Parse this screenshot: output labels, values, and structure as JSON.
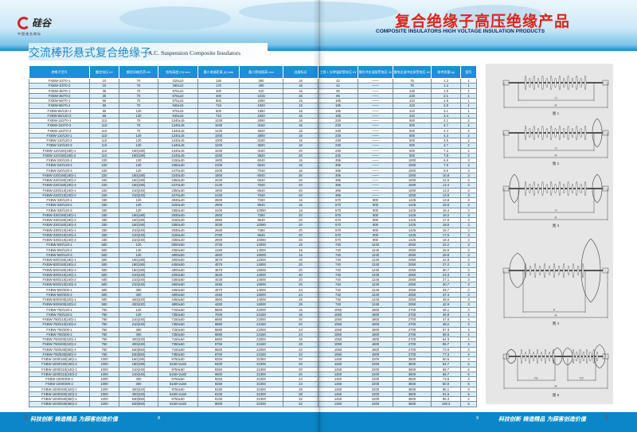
{
  "header": {
    "logo_text": "硅谷",
    "logo_sub": "中国驰名商标",
    "title_cn": "复合绝缘子高压绝缘产品",
    "title_en": "COMPOSITE INSULATORS HIGH VOLTAGE INSULATION PRODUCTS"
  },
  "section": {
    "title_cn": "交流棒形悬式复合绝缘子",
    "title_en": "A.C. Suspension Composite Insulators"
  },
  "table": {
    "columns": [
      "绝缘子型号",
      "额定电压 kV",
      "额定机械负荷 kN",
      "结构高度 (H) mm",
      "最小电弧距离 (h) mm",
      "最小爬电距离 mm",
      "连接标记",
      "工频 1 分钟湿耐受电压 kV",
      "操作冲击湿耐受电压 kV",
      "雷电全波冲击耐受电压 kV",
      "参考质量 kg",
      "图号"
    ],
    "rows": [
      [
        "FXBW-10/70-1",
        "10",
        "70",
        "310±10",
        "130",
        "300",
        "16",
        "42",
        "——",
        "75",
        "1.3",
        "1"
      ],
      [
        "FXBW-10/70-2",
        "10",
        "70",
        "360±10",
        "170",
        "400",
        "16",
        "42",
        "——",
        "75",
        "1.4",
        "1"
      ],
      [
        "FXBW-35/70-1",
        "35",
        "70",
        "670±10",
        "400",
        "810",
        "16",
        "95",
        "——",
        "230",
        "1.9",
        "1"
      ],
      [
        "FXBW-35/70-2",
        "35",
        "70",
        "670±10",
        "400",
        "1015",
        "16",
        "95",
        "——",
        "230",
        "2.1",
        "1"
      ],
      [
        "FXBW-66/70-1",
        "66",
        "70",
        "870±15",
        "600",
        "1650",
        "16",
        "185",
        "——",
        "410",
        "2.8",
        "1"
      ],
      [
        "FXBW-66/70-2",
        "66",
        "70",
        "940±15",
        "710",
        "1920",
        "16",
        "185",
        "——",
        "410",
        "2.9",
        "1"
      ],
      [
        "FXBW-66/120-1",
        "66",
        "120",
        "870±15",
        "600",
        "1650",
        "16",
        "185",
        "——",
        "410",
        "3.1",
        "1"
      ],
      [
        "FXBW-66/120-2",
        "66",
        "120",
        "940±15",
        "710",
        "1920",
        "16",
        "185",
        "——",
        "410",
        "3.4",
        "1"
      ],
      [
        "FXBW-110/70-1",
        "110",
        "70",
        "1240±15",
        "1030",
        "2800",
        "16",
        "230",
        "——",
        "500",
        "4.1",
        "2"
      ],
      [
        "FXBW-110/70-2",
        "110",
        "70",
        "1240±15",
        "1030",
        "3150",
        "16",
        "230",
        "——",
        "500",
        "4.7",
        "2"
      ],
      [
        "FXBW-110/70-3",
        "110",
        "70",
        "1440±15",
        "1230",
        "3620",
        "16",
        "230",
        "——",
        "500",
        "4.4",
        "2"
      ],
      [
        "FXBW-110/120-1",
        "110",
        "120",
        "1240±15",
        "1000",
        "2800",
        "16",
        "230",
        "——",
        "500",
        "4.3",
        "2"
      ],
      [
        "FXBW-110/120-2",
        "110",
        "120",
        "1240±15",
        "1000",
        "3150",
        "16",
        "230",
        "——",
        "500",
        "4.5",
        "2"
      ],
      [
        "FXBW-110/120-3",
        "110",
        "120",
        "1440±15",
        "1200",
        "3620",
        "16",
        "230",
        "——",
        "500",
        "4.7",
        "2"
      ],
      [
        "FXBW-110/160(180)-1",
        "110",
        "160(180)",
        "1240±15",
        "1030",
        "3150",
        "20",
        "230",
        "——",
        "500",
        "7.3",
        "2"
      ],
      [
        "FXBW-110/160(180)-2",
        "110",
        "160(180)",
        "1240±15",
        "1030",
        "3620",
        "20",
        "230",
        "——",
        "500",
        "7.8",
        "2"
      ],
      [
        "FXBW-220/120-1",
        "220",
        "120",
        "2150±30",
        "1900",
        "6040",
        "16",
        "395",
        "——",
        "1000",
        "6.9",
        "3"
      ],
      [
        "FXBW-220/120-2",
        "220",
        "120",
        "2350±30",
        "2100",
        "6540",
        "16",
        "395",
        "——",
        "1000",
        "7.9",
        "3"
      ],
      [
        "FXBW-220/120-3",
        "220",
        "120",
        "2470±30",
        "2200",
        "7040",
        "16",
        "395",
        "——",
        "1000",
        "8.6",
        "3"
      ],
      [
        "FXBW-220/160(180)-1",
        "220",
        "160(180)",
        "2240±30",
        "1900",
        "6040",
        "20",
        "395",
        "——",
        "1000",
        "10.8",
        "3"
      ],
      [
        "FXBW-220/160(180)-2",
        "220",
        "160(180)",
        "2350±30",
        "2030",
        "6540",
        "20",
        "395",
        "——",
        "1000",
        "12.5",
        "3"
      ],
      [
        "FXBW-220/160(180)-3",
        "220",
        "160(180)",
        "2470±30",
        "2140",
        "7040",
        "20",
        "395",
        "——",
        "1000",
        "13.4",
        "3"
      ],
      [
        "FXBW-220/210(240)-1",
        "220",
        "210(240)",
        "2350±30",
        "1900",
        "6540",
        "20",
        "395",
        "——",
        "1000",
        "13.0",
        "3"
      ],
      [
        "FXBW-220/210(240)-2",
        "220",
        "210(240)",
        "2470±30",
        "2100",
        "7040",
        "20",
        "395",
        "——",
        "1000",
        "13.9",
        "3"
      ],
      [
        "FXBW-330/120-1",
        "330",
        "120",
        "2930±40",
        "2600",
        "7260",
        "16",
        "570",
        "900",
        "1425",
        "13.8",
        "3"
      ],
      [
        "FXBW-330/120-2",
        "330",
        "120",
        "3150±40",
        "2900",
        "9540",
        "16",
        "570",
        "900",
        "1425",
        "16.6",
        "3"
      ],
      [
        "FXBW-330/120-3",
        "330",
        "120",
        "3350±40",
        "3100",
        "10080",
        "16",
        "570",
        "900",
        "1425",
        "16.4",
        "3"
      ],
      [
        "FXBW-330/160(180)-1",
        "330",
        "160(180)",
        "2930±40",
        "2600",
        "7260",
        "20",
        "570",
        "900",
        "1425",
        "16.2",
        "3"
      ],
      [
        "FXBW-330/160(180)-2",
        "330",
        "160(180)",
        "3150±40",
        "2850",
        "9540",
        "20",
        "570",
        "900",
        "1425",
        "17.0",
        "3"
      ],
      [
        "FXBW-330/160(180)-3",
        "330",
        "160(180)",
        "3350±40",
        "3030",
        "10080",
        "20",
        "570",
        "900",
        "1425",
        "18.8",
        "3"
      ],
      [
        "FXBW-330/210(240)-1",
        "330",
        "210(240)",
        "2930±40",
        "2560",
        "7260",
        "20",
        "570",
        "900",
        "1425",
        "16.7",
        "3"
      ],
      [
        "FXBW-330/210(240)-2",
        "330",
        "210(240)",
        "3150±40",
        "2780",
        "9540",
        "20",
        "570",
        "900",
        "1425",
        "17.6",
        "3"
      ],
      [
        "FXBW-330/210(240)-3",
        "330",
        "210(240)",
        "3350±40",
        "2900",
        "10080",
        "20",
        "570",
        "900",
        "1425",
        "18.3",
        "3"
      ],
      [
        "FXBW-500/120-1",
        "500",
        "120",
        "4000±50",
        "3730",
        "12000",
        "16",
        "740",
        "1240",
        "2050",
        "22.2",
        "3"
      ],
      [
        "FXBW-500/120-2",
        "500",
        "120",
        "4450±50",
        "4150",
        "14000",
        "16",
        "740",
        "1240",
        "2050",
        "26.6",
        "3"
      ],
      [
        "FXBW-500/120-3",
        "500",
        "120",
        "4900±50",
        "4600",
        "16000",
        "16",
        "740",
        "1240",
        "2050",
        "29.8",
        "3"
      ],
      [
        "FXBW-500/160(180)-1",
        "500",
        "160(180)",
        "4000±50",
        "3670",
        "12000",
        "20",
        "740",
        "1240",
        "2050",
        "22.8",
        "3"
      ],
      [
        "FXBW-500/160(180)-2",
        "500",
        "160(180)",
        "4450±50",
        "4070",
        "14000",
        "20",
        "740",
        "1240",
        "2050",
        "27.2",
        "3"
      ],
      [
        "FXBW-500/160(180)-3",
        "500",
        "160(180)",
        "4900±50",
        "4570",
        "16000",
        "20",
        "740",
        "1240",
        "2050",
        "30.7",
        "3"
      ],
      [
        "FXBW-500/210(240)-1",
        "500",
        "210(240)",
        "4000±50",
        "3620",
        "12000",
        "20",
        "740",
        "1240",
        "2050",
        "23.3",
        "3"
      ],
      [
        "FXBW-500/210(240)-2",
        "500",
        "210(240)",
        "4450±50",
        "4030",
        "14000",
        "20",
        "740",
        "1240",
        "2050",
        "27.1",
        "3"
      ],
      [
        "FXBW-500/210(240)-3",
        "500",
        "210(240)",
        "4900±50",
        "4480",
        "16000",
        "20",
        "740",
        "1240",
        "2050",
        "30.7",
        "3"
      ],
      [
        "FXBW-500/300-1",
        "500",
        "300",
        "4450±50",
        "4070",
        "14000",
        "24",
        "740",
        "1240",
        "2050",
        "33.7",
        "3"
      ],
      [
        "FXBW-500/300-2",
        "500",
        "300",
        "4900±50",
        "4460",
        "16000",
        "24",
        "740",
        "1240",
        "2050",
        "37.4",
        "3"
      ],
      [
        "FXBW-500/400(420)-1",
        "500",
        "400(420)",
        "4450±50",
        "3900",
        "14000",
        "28",
        "740",
        "1240",
        "2050",
        "39.0",
        "3"
      ],
      [
        "FXBW-500/400(420)-2",
        "500",
        "400(420)",
        "4900±50",
        "4450",
        "16000",
        "28",
        "740",
        "1240",
        "2050",
        "42.9",
        "3"
      ],
      [
        "FXBW-750/120-1",
        "750",
        "120",
        "7150±50",
        "6800",
        "22000",
        "16",
        "1050",
        "1800",
        "2700",
        "46.1",
        "4"
      ],
      [
        "FXBW-750/120-2",
        "750",
        "120",
        "7350±50",
        "7000",
        "24150",
        "16",
        "1050",
        "1800",
        "2700",
        "46.9",
        "4"
      ],
      [
        "FXBW-750/210(240)-1",
        "750",
        "210(240)",
        "7150±50",
        "6680",
        "22000",
        "20",
        "1050",
        "1800",
        "2700",
        "47.0",
        "4"
      ],
      [
        "FXBW-750/210(240)-2",
        "750",
        "210(240)",
        "7350±50",
        "6880",
        "24150",
        "20",
        "1050",
        "1800",
        "2700",
        "48.2",
        "4"
      ],
      [
        "FXBW-750/300-1",
        "750",
        "300",
        "7150±50",
        "6680",
        "22000",
        "24",
        "1050",
        "1800",
        "2700",
        "57.3",
        "4"
      ],
      [
        "FXBW-750/300-2",
        "750",
        "300",
        "7350±50",
        "6880",
        "24150",
        "24",
        "1050",
        "1800",
        "2700",
        "58.5",
        "4"
      ],
      [
        "FXBW-750/400(420)-1",
        "750",
        "400(420)",
        "7150±50",
        "6550",
        "22000",
        "28",
        "1050",
        "1800",
        "2700",
        "64.3",
        "4"
      ],
      [
        "FXBW-750/400(420)-2",
        "750",
        "400(420)",
        "7350±50",
        "6750",
        "24150",
        "28",
        "1050",
        "1800",
        "2700",
        "65.7",
        "4"
      ],
      [
        "FXBW-750/530(550)-1",
        "750",
        "530(550)",
        "7150±50",
        "6500",
        "22000",
        "32",
        "1050",
        "1800",
        "2700",
        "73.6",
        "4"
      ],
      [
        "FXBW-750/530(550)-2",
        "750",
        "530(550)",
        "7350±50",
        "6700",
        "24150",
        "32",
        "1050",
        "1800",
        "2700",
        "77.3",
        "4"
      ],
      [
        "FXBW-1000/160(180)-1",
        "1000",
        "160(180)",
        "9750±50",
        "9300",
        "31000",
        "20",
        "1450",
        "2200",
        "3600",
        "60.5",
        "4"
      ],
      [
        "FXBW-1000/160(180)-2",
        "1000",
        "160(180)",
        "5150×2±50",
        "9400",
        "31000",
        "20",
        "1450",
        "2200",
        "3600",
        "64.7",
        "5"
      ],
      [
        "FXBW-1000/210(240)-1",
        "1000",
        "210(240)",
        "9750±50",
        "9350",
        "31000",
        "20",
        "1450",
        "2200",
        "3600",
        "59.7",
        "4"
      ],
      [
        "FXBW-1000/210(240)-2",
        "1000",
        "210(240)",
        "5150×2±50",
        "9600",
        "31000",
        "20",
        "1450",
        "2200",
        "3600",
        "66.7",
        "5"
      ],
      [
        "FXBW-1000/300-1",
        "1000",
        "300",
        "9750±50",
        "9250",
        "31000",
        "24",
        "1450",
        "2200",
        "3600",
        "73.6",
        "4"
      ],
      [
        "FXBW-1000/300-2",
        "1000",
        "300",
        "5150×2±50",
        "9350",
        "31000",
        "24",
        "1450",
        "2200",
        "3600",
        "80.0",
        "5"
      ],
      [
        "FXBW-1000/400(420)-1",
        "1000",
        "400(420)",
        "9750±50",
        "9150",
        "31000",
        "28",
        "1450",
        "2200",
        "3600",
        "85.1",
        "4"
      ],
      [
        "FXBW-1000/400(420)-2",
        "1000",
        "400(420)",
        "5150×2±50",
        "9100",
        "31000",
        "28",
        "1450",
        "2200",
        "3600",
        "91.6",
        "5"
      ],
      [
        "FXBW-1000/530(550)-1",
        "1000",
        "530(550)",
        "9750±50",
        "9100",
        "31000",
        "32",
        "1450",
        "2200",
        "3600",
        "96.3",
        "4"
      ],
      [
        "FXBW-1000/530(550)-2",
        "1000",
        "530(550)",
        "5150×2±50",
        "9000",
        "31000",
        "32",
        "1450",
        "2200",
        "3600",
        "109.3",
        "5"
      ]
    ]
  },
  "figures": [
    {
      "caption": "图 1",
      "labels": [
        "h",
        "H"
      ],
      "rings": "none"
    },
    {
      "caption": "图 2",
      "labels": [
        "h",
        "H"
      ],
      "rings": "one"
    },
    {
      "caption": "图 3",
      "labels": [
        "h",
        "H"
      ],
      "rings": "both"
    },
    {
      "caption": "图 4",
      "labels": [
        "h",
        "H"
      ],
      "rings": "large"
    },
    {
      "caption": "图 5",
      "labels": [
        "h1",
        "h2",
        "H"
      ],
      "rings": "double"
    }
  ],
  "footer": {
    "slogan_left": "科技创新 铸造精品 为顾客创造价值",
    "page_left": "8",
    "slogan_right": "科技创新 铸造精品 为顾客创造价值",
    "page_right": "9"
  },
  "colors": {
    "brand_blue": "#1b8fd8",
    "title_red": "#e2231a",
    "row_stripe": "#d4edfa"
  }
}
